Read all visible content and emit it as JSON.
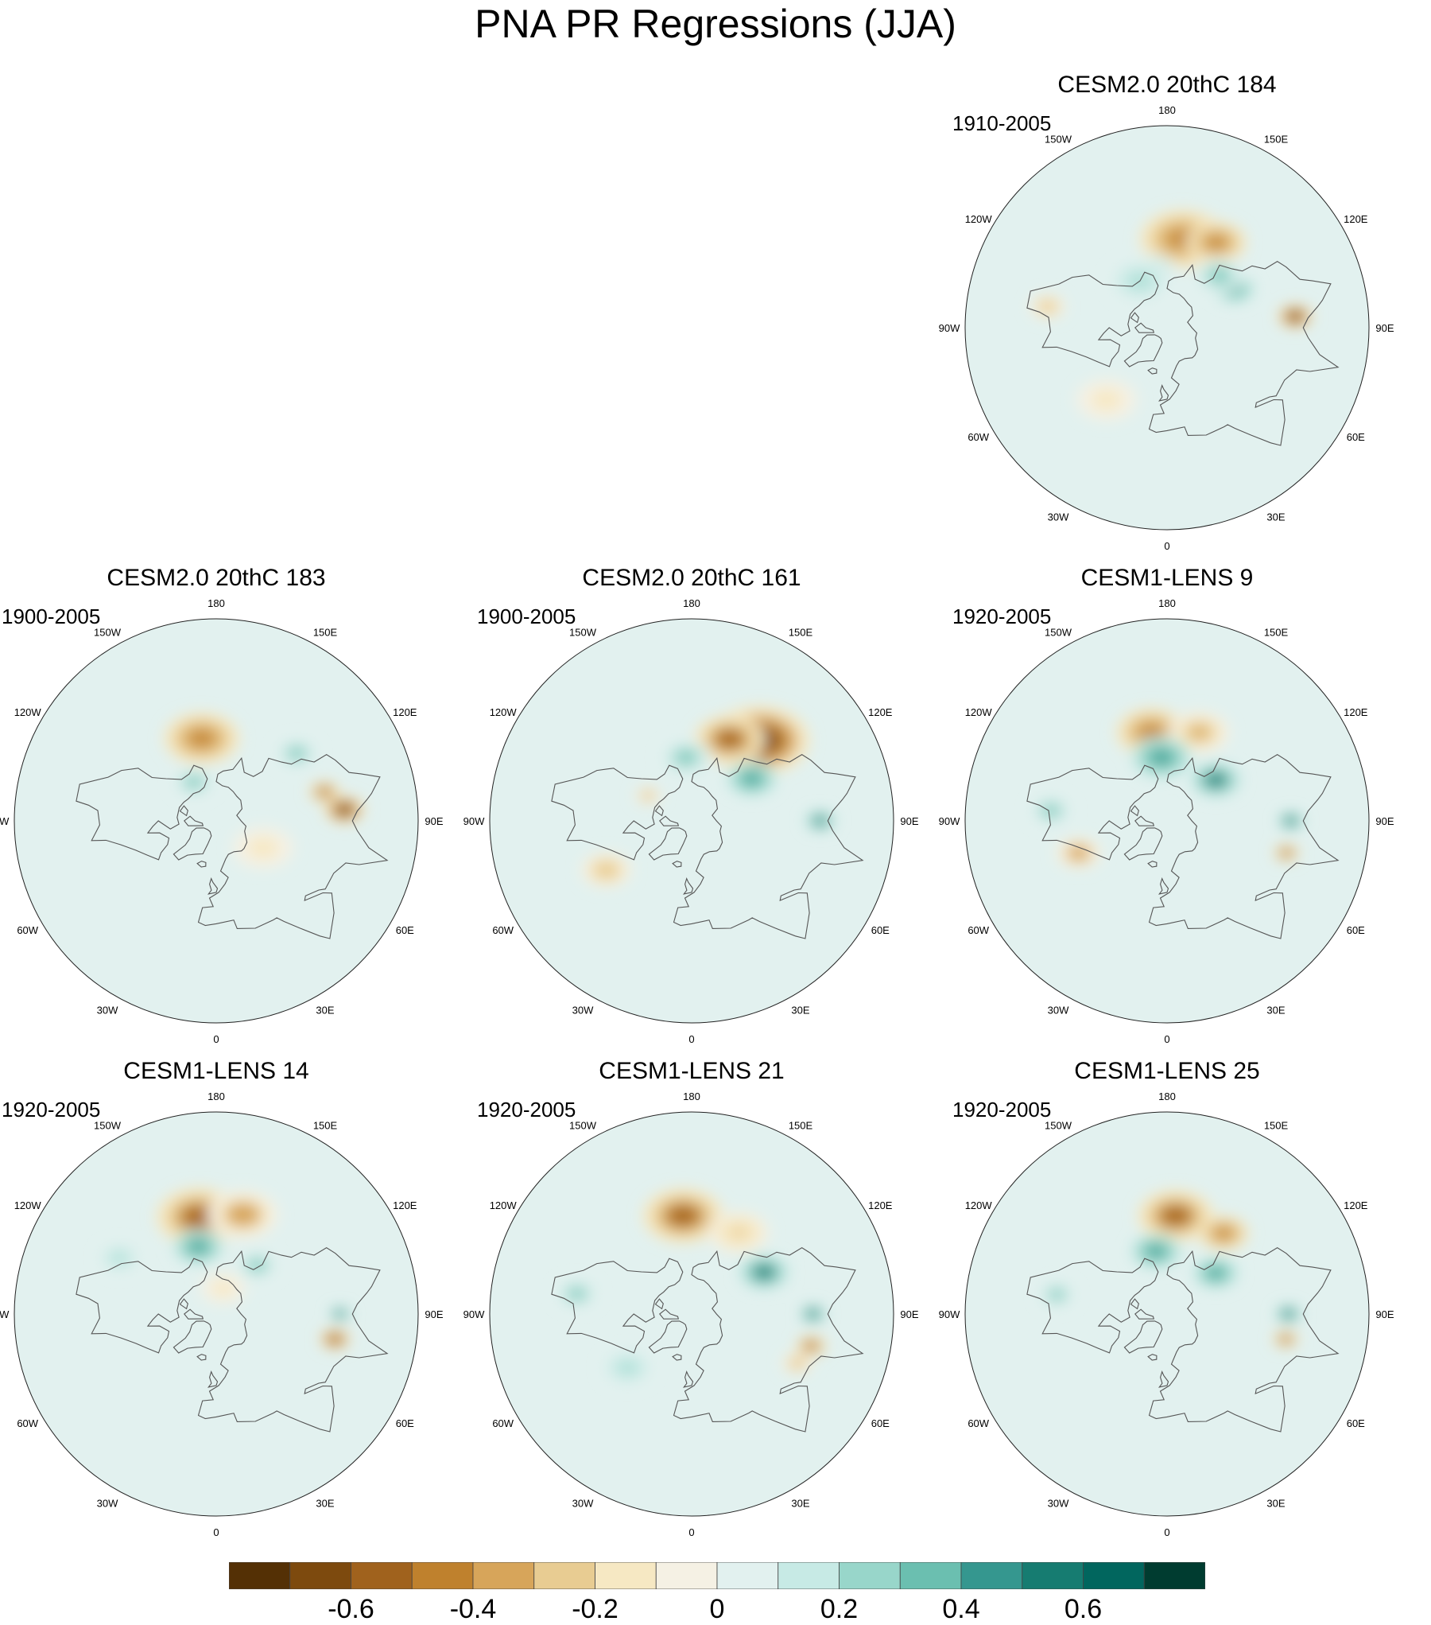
{
  "title": "PNA PR Regressions (JJA)",
  "map_style": {
    "projection": "north-polar-stereographic",
    "land_outline_color": "#555555",
    "rim_color": "#222222",
    "longitude_labels": [
      "180",
      "150E",
      "120E",
      "90E",
      "60E",
      "30E",
      "0",
      "30W",
      "60W",
      "90W",
      "120W",
      "150W"
    ]
  },
  "panels": [
    {
      "id": "p184",
      "title": "CESM2.0 20thC 184",
      "years": "1910-2005",
      "features": [
        {
          "lon": 170,
          "lat": 42,
          "v": -0.45,
          "r": 0.17
        },
        {
          "lon": 150,
          "lat": 38,
          "v": -0.5,
          "r": 0.12
        },
        {
          "lon": 95,
          "lat": 25,
          "v": -0.75,
          "r": 0.07
        },
        {
          "lon": 120,
          "lat": 48,
          "v": 0.45,
          "r": 0.08
        },
        {
          "lon": 135,
          "lat": 50,
          "v": 0.35,
          "r": 0.1
        },
        {
          "lon": -165,
          "lat": 58,
          "v": 0.3,
          "r": 0.1
        },
        {
          "lon": -150,
          "lat": 60,
          "v": 0.2,
          "r": 0.12
        },
        {
          "lon": -100,
          "lat": 28,
          "v": -0.3,
          "r": 0.07
        },
        {
          "lon": -40,
          "lat": 40,
          "v": -0.15,
          "r": 0.12
        }
      ]
    },
    {
      "id": "p183",
      "title": "CESM2.0 20thC 183",
      "years": "1900-2005",
      "features": [
        {
          "lon": -170,
          "lat": 45,
          "v": -0.45,
          "r": 0.15
        },
        {
          "lon": 95,
          "lat": 25,
          "v": -0.75,
          "r": 0.08
        },
        {
          "lon": 105,
          "lat": 32,
          "v": -0.55,
          "r": 0.06
        },
        {
          "lon": 130,
          "lat": 35,
          "v": 0.3,
          "r": 0.08
        },
        {
          "lon": -150,
          "lat": 65,
          "v": 0.3,
          "r": 0.08
        },
        {
          "lon": 60,
          "lat": 60,
          "v": -0.15,
          "r": 0.12
        }
      ]
    },
    {
      "id": "p161",
      "title": "CESM2.0 20thC 161",
      "years": "1900-2005",
      "features": [
        {
          "lon": 140,
          "lat": 35,
          "v": -0.75,
          "r": 0.2
        },
        {
          "lon": 155,
          "lat": 42,
          "v": -0.55,
          "r": 0.14
        },
        {
          "lon": 125,
          "lat": 50,
          "v": 0.4,
          "r": 0.1
        },
        {
          "lon": 90,
          "lat": 25,
          "v": 0.55,
          "r": 0.06
        },
        {
          "lon": -175,
          "lat": 55,
          "v": 0.35,
          "r": 0.1
        },
        {
          "lon": -60,
          "lat": 38,
          "v": -0.3,
          "r": 0.1
        },
        {
          "lon": -120,
          "lat": 62,
          "v": -0.35,
          "r": 0.05
        }
      ]
    },
    {
      "id": "plens9",
      "title": "CESM1-LENS 9",
      "years": "1920-2005",
      "features": [
        {
          "lon": -170,
          "lat": 42,
          "v": -0.45,
          "r": 0.14
        },
        {
          "lon": 160,
          "lat": 40,
          "v": -0.35,
          "r": 0.12
        },
        {
          "lon": -175,
          "lat": 55,
          "v": 0.4,
          "r": 0.12
        },
        {
          "lon": 130,
          "lat": 55,
          "v": 0.55,
          "r": 0.1
        },
        {
          "lon": 90,
          "lat": 27,
          "v": 0.6,
          "r": 0.05
        },
        {
          "lon": 75,
          "lat": 27,
          "v": -0.55,
          "r": 0.05
        },
        {
          "lon": -70,
          "lat": 40,
          "v": -0.4,
          "r": 0.09
        },
        {
          "lon": -95,
          "lat": 30,
          "v": 0.35,
          "r": 0.08
        }
      ]
    },
    {
      "id": "plens14",
      "title": "CESM1-LENS 14",
      "years": "1920-2005",
      "features": [
        {
          "lon": -170,
          "lat": 38,
          "v": -0.55,
          "r": 0.17
        },
        {
          "lon": 165,
          "lat": 36,
          "v": -0.4,
          "r": 0.14
        },
        {
          "lon": -165,
          "lat": 52,
          "v": 0.45,
          "r": 0.1
        },
        {
          "lon": 140,
          "lat": 55,
          "v": 0.35,
          "r": 0.08
        },
        {
          "lon": 90,
          "lat": 27,
          "v": 0.65,
          "r": 0.04
        },
        {
          "lon": 78,
          "lat": 28,
          "v": -0.65,
          "r": 0.06
        },
        {
          "lon": -120,
          "lat": 32,
          "v": 0.25,
          "r": 0.08
        },
        {
          "lon": 165,
          "lat": 75,
          "v": -0.2,
          "r": 0.09
        }
      ]
    },
    {
      "id": "plens21",
      "title": "CESM1-LENS 21",
      "years": "1920-2005",
      "features": [
        {
          "lon": -175,
          "lat": 38,
          "v": -0.55,
          "r": 0.16
        },
        {
          "lon": 150,
          "lat": 40,
          "v": -0.25,
          "r": 0.12
        },
        {
          "lon": 120,
          "lat": 45,
          "v": 0.55,
          "r": 0.1
        },
        {
          "lon": 90,
          "lat": 28,
          "v": 0.65,
          "r": 0.05
        },
        {
          "lon": 75,
          "lat": 27,
          "v": -0.6,
          "r": 0.06
        },
        {
          "lon": -100,
          "lat": 30,
          "v": 0.35,
          "r": 0.08
        },
        {
          "lon": -50,
          "lat": 45,
          "v": 0.25,
          "r": 0.1
        },
        {
          "lon": 65,
          "lat": 30,
          "v": -0.35,
          "r": 0.06
        }
      ]
    },
    {
      "id": "plens25",
      "title": "CESM1-LENS 25",
      "years": "1920-2005",
      "features": [
        {
          "lon": 175,
          "lat": 38,
          "v": -0.55,
          "r": 0.15
        },
        {
          "lon": 145,
          "lat": 38,
          "v": -0.45,
          "r": 0.1
        },
        {
          "lon": -170,
          "lat": 55,
          "v": 0.45,
          "r": 0.1
        },
        {
          "lon": 130,
          "lat": 55,
          "v": 0.45,
          "r": 0.09
        },
        {
          "lon": 90,
          "lat": 28,
          "v": 0.65,
          "r": 0.05
        },
        {
          "lon": 78,
          "lat": 28,
          "v": -0.6,
          "r": 0.05
        },
        {
          "lon": -100,
          "lat": 32,
          "v": 0.3,
          "r": 0.07
        }
      ]
    }
  ],
  "colorbar": {
    "levels": [
      -0.7,
      -0.6,
      -0.5,
      -0.4,
      -0.3,
      -0.2,
      -0.1,
      0,
      0.1,
      0.2,
      0.3,
      0.4,
      0.5,
      0.6,
      0.7
    ],
    "colors": [
      "#543005",
      "#7d4a0e",
      "#a0621d",
      "#bf812d",
      "#d7a55a",
      "#e8cc92",
      "#f6e8c3",
      "#f5f1e4",
      "#e2f1ef",
      "#c7eae5",
      "#98d6ca",
      "#6bbfb0",
      "#35978f",
      "#167c71",
      "#01665e",
      "#003c30"
    ],
    "tick_labels": [
      "-0.6",
      "-0.4",
      "-0.2",
      "0",
      "0.2",
      "0.4",
      "0.6"
    ],
    "tick_values": [
      -0.6,
      -0.4,
      -0.2,
      0,
      0.2,
      0.4,
      0.6
    ]
  }
}
